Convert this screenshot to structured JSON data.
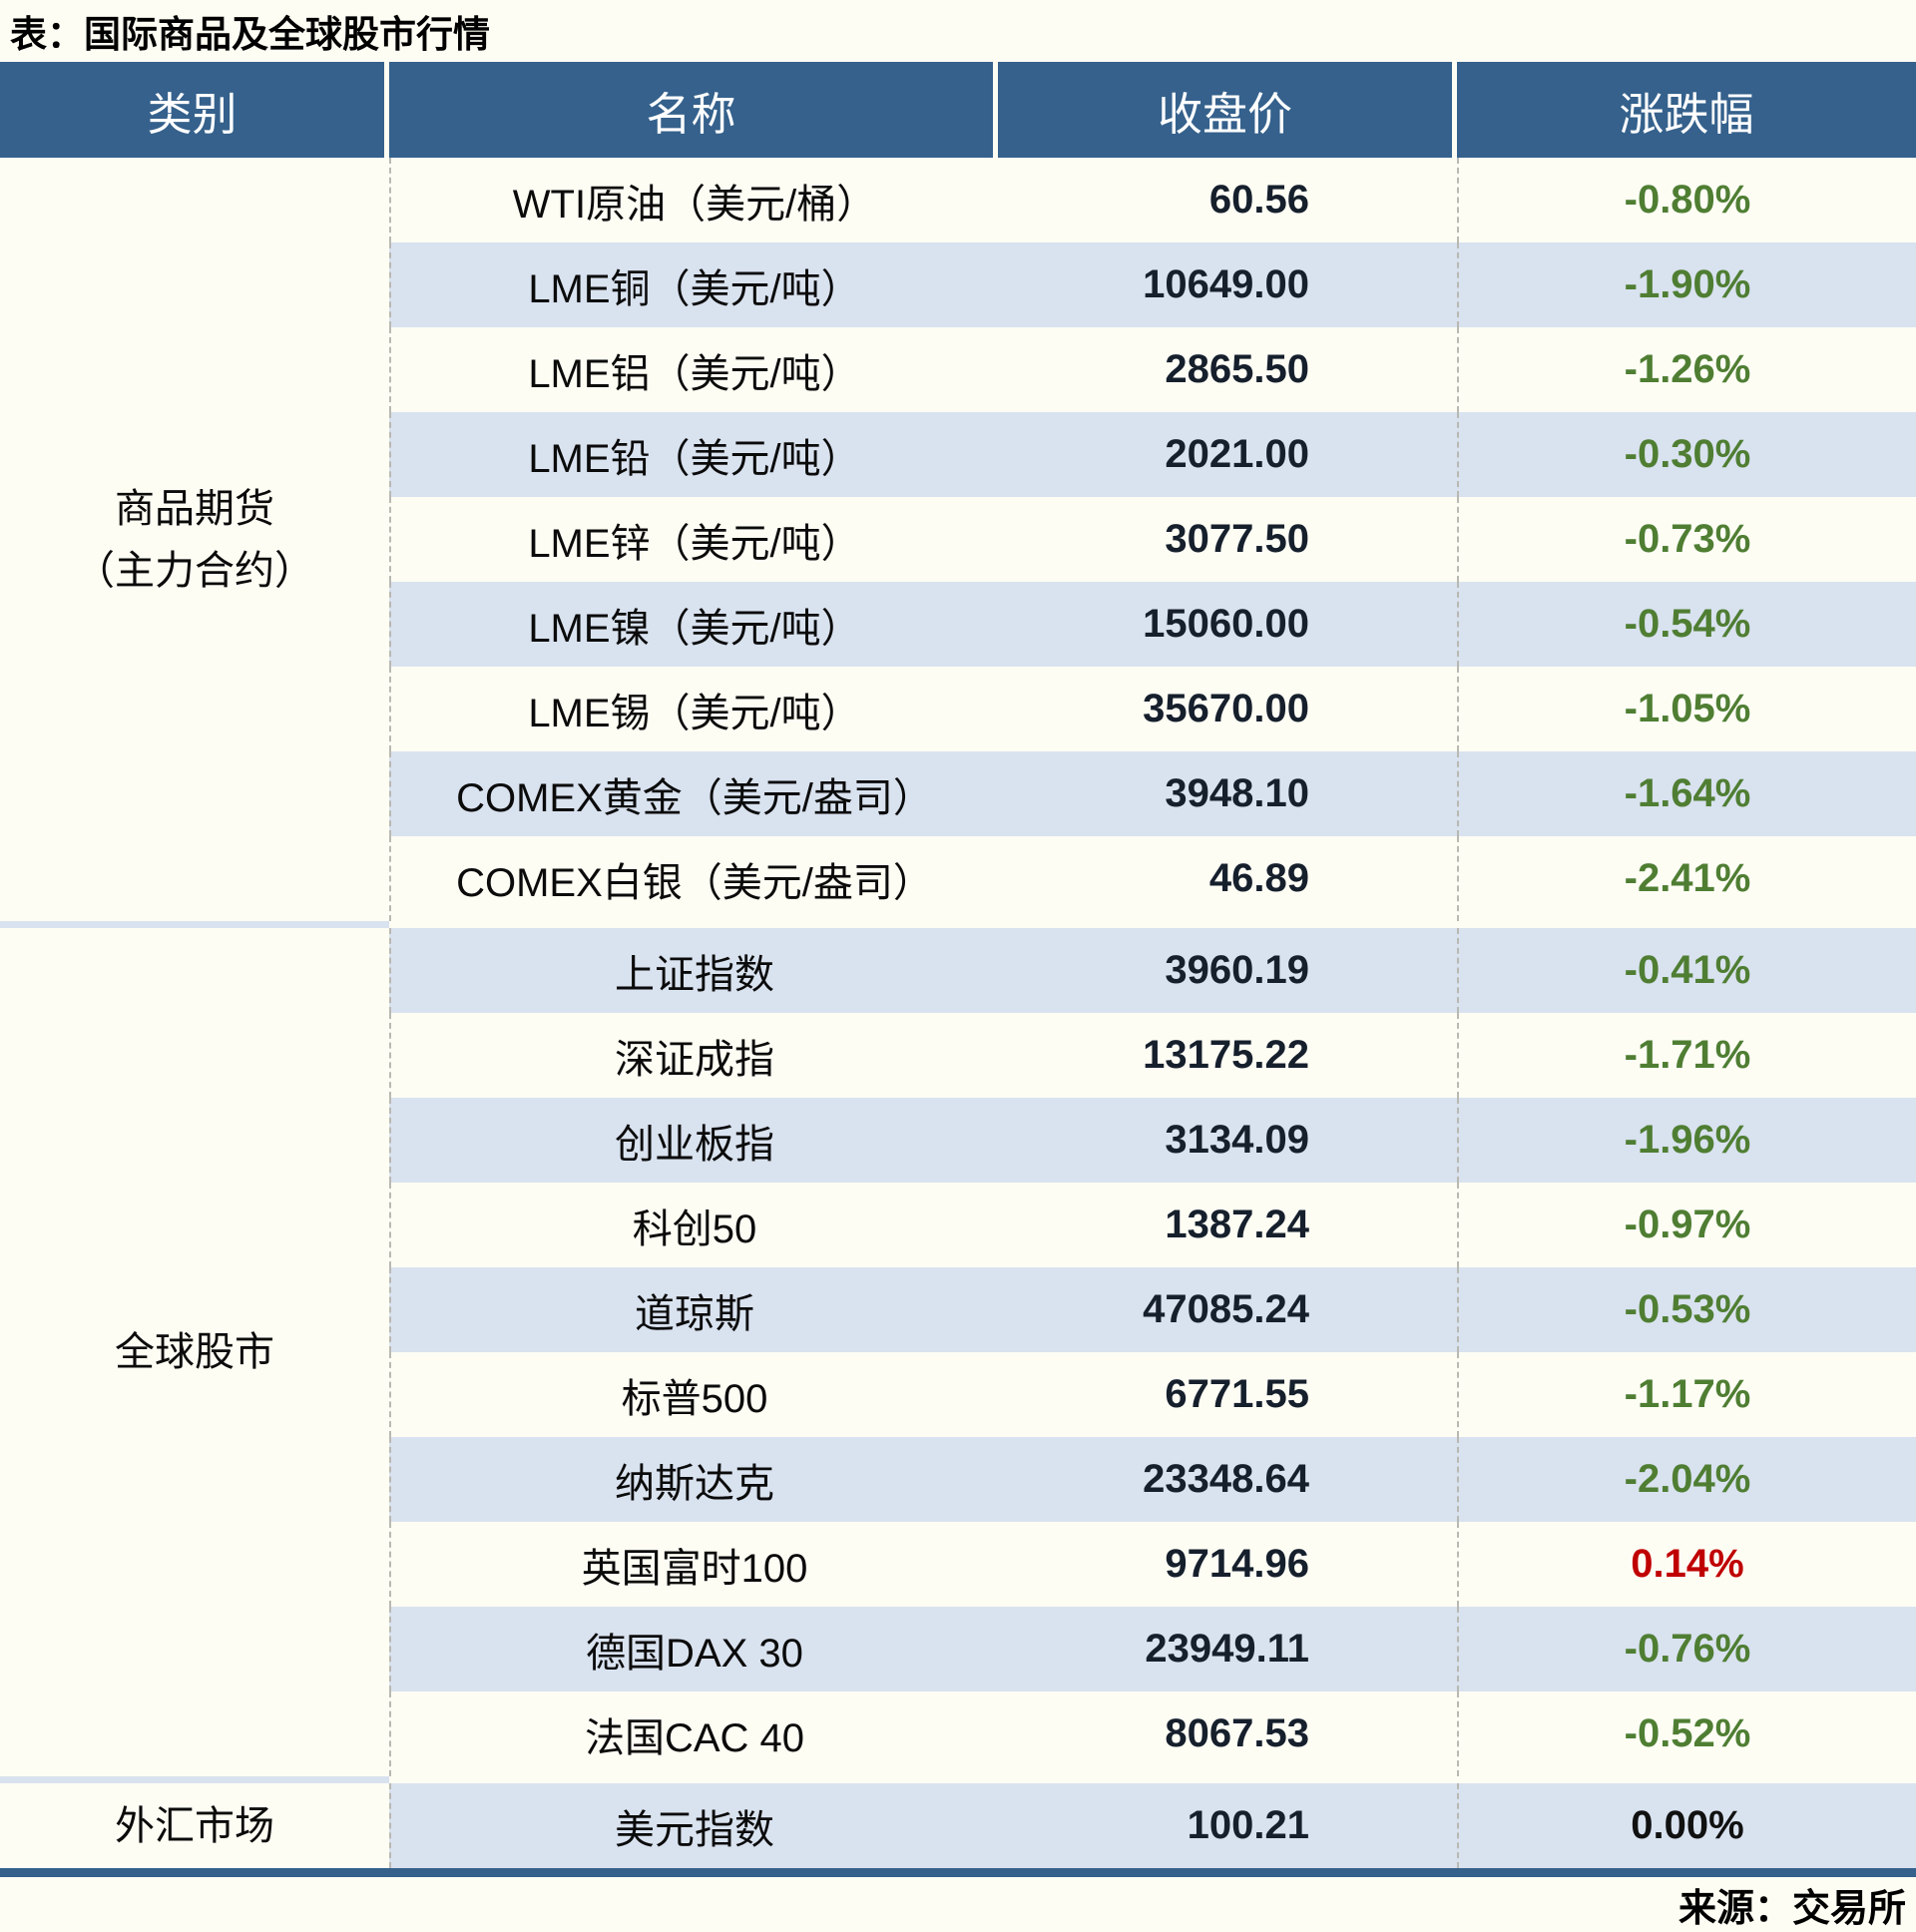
{
  "title": "表：国际商品及全球股市行情",
  "source_note": "来源：交易所",
  "colors": {
    "header_bg": "#35618C",
    "row_bg": "#FDFDF4",
    "row_alt_bg": "#D9E2EF",
    "down_green": "#4F7E33",
    "up_red": "#C00000",
    "flat_black": "#111111",
    "number_text": "#161F2C"
  },
  "table": {
    "columns": [
      "类别",
      "名称",
      "收盘价",
      "涨跌幅"
    ],
    "sections": [
      {
        "category": "商品期货",
        "category_line2": "（主力合约）",
        "rows": [
          {
            "name": "WTI原油（美元/桶）",
            "close": "60.56",
            "change": "-0.80%",
            "trend": "down"
          },
          {
            "name": "LME铜（美元/吨）",
            "close": "10649.00",
            "change": "-1.90%",
            "trend": "down"
          },
          {
            "name": "LME铝（美元/吨）",
            "close": "2865.50",
            "change": "-1.26%",
            "trend": "down"
          },
          {
            "name": "LME铅（美元/吨）",
            "close": "2021.00",
            "change": "-0.30%",
            "trend": "down"
          },
          {
            "name": "LME锌（美元/吨）",
            "close": "3077.50",
            "change": "-0.73%",
            "trend": "down"
          },
          {
            "name": "LME镍（美元/吨）",
            "close": "15060.00",
            "change": "-0.54%",
            "trend": "down"
          },
          {
            "name": "LME锡（美元/吨）",
            "close": "35670.00",
            "change": "-1.05%",
            "trend": "down"
          },
          {
            "name": "COMEX黄金（美元/盎司）",
            "close": "3948.10",
            "change": "-1.64%",
            "trend": "down"
          },
          {
            "name": "COMEX白银（美元/盎司）",
            "close": "46.89",
            "change": "-2.41%",
            "trend": "down"
          }
        ]
      },
      {
        "category": "全球股市",
        "category_line2": "",
        "rows": [
          {
            "name": "上证指数",
            "close": "3960.19",
            "change": "-0.41%",
            "trend": "down"
          },
          {
            "name": "深证成指",
            "close": "13175.22",
            "change": "-1.71%",
            "trend": "down"
          },
          {
            "name": "创业板指",
            "close": "3134.09",
            "change": "-1.96%",
            "trend": "down"
          },
          {
            "name": "科创50",
            "close": "1387.24",
            "change": "-0.97%",
            "trend": "down"
          },
          {
            "name": "道琼斯",
            "close": "47085.24",
            "change": "-0.53%",
            "trend": "down"
          },
          {
            "name": "标普500",
            "close": "6771.55",
            "change": "-1.17%",
            "trend": "down"
          },
          {
            "name": "纳斯达克",
            "close": "23348.64",
            "change": "-2.04%",
            "trend": "down"
          },
          {
            "name": "英国富时100",
            "close": "9714.96",
            "change": "0.14%",
            "trend": "up"
          },
          {
            "name": "德国DAX 30",
            "close": "23949.11",
            "change": "-0.76%",
            "trend": "down"
          },
          {
            "name": "法国CAC 40",
            "close": "8067.53",
            "change": "-0.52%",
            "trend": "down"
          }
        ]
      },
      {
        "category": "外汇市场",
        "category_line2": "",
        "rows": [
          {
            "name": "美元指数",
            "close": "100.21",
            "change": "0.00%",
            "trend": "flat"
          }
        ]
      }
    ]
  },
  "chart_data": {
    "type": "table",
    "title": "表：国际商品及全球股市行情",
    "columns": [
      "类别",
      "名称",
      "收盘价",
      "涨跌幅"
    ],
    "rows": [
      [
        "商品期货（主力合约）",
        "WTI原油（美元/桶）",
        60.56,
        "-0.80%"
      ],
      [
        "商品期货（主力合约）",
        "LME铜（美元/吨）",
        10649.0,
        "-1.90%"
      ],
      [
        "商品期货（主力合约）",
        "LME铝（美元/吨）",
        2865.5,
        "-1.26%"
      ],
      [
        "商品期货（主力合约）",
        "LME铅（美元/吨）",
        2021.0,
        "-0.30%"
      ],
      [
        "商品期货（主力合约）",
        "LME锌（美元/吨）",
        3077.5,
        "-0.73%"
      ],
      [
        "商品期货（主力合约）",
        "LME镍（美元/吨）",
        15060.0,
        "-0.54%"
      ],
      [
        "商品期货（主力合约）",
        "LME锡（美元/吨）",
        35670.0,
        "-1.05%"
      ],
      [
        "商品期货（主力合约）",
        "COMEX黄金（美元/盎司）",
        3948.1,
        "-1.64%"
      ],
      [
        "商品期货（主力合约）",
        "COMEX白银（美元/盎司）",
        46.89,
        "-2.41%"
      ],
      [
        "全球股市",
        "上证指数",
        3960.19,
        "-0.41%"
      ],
      [
        "全球股市",
        "深证成指",
        13175.22,
        "-1.71%"
      ],
      [
        "全球股市",
        "创业板指",
        3134.09,
        "-1.96%"
      ],
      [
        "全球股市",
        "科创50",
        1387.24,
        "-0.97%"
      ],
      [
        "全球股市",
        "道琼斯",
        47085.24,
        "-0.53%"
      ],
      [
        "全球股市",
        "标普500",
        6771.55,
        "-1.17%"
      ],
      [
        "全球股市",
        "纳斯达克",
        23348.64,
        "-2.04%"
      ],
      [
        "全球股市",
        "英国富时100",
        9714.96,
        "0.14%"
      ],
      [
        "全球股市",
        "德国DAX 30",
        23949.11,
        "-0.76%"
      ],
      [
        "全球股市",
        "法国CAC 40",
        8067.53,
        "-0.52%"
      ],
      [
        "外汇市场",
        "美元指数",
        100.21,
        "0.00%"
      ]
    ],
    "legend": "green = decline, red = advance, black = unchanged",
    "source": "来源：交易所"
  }
}
